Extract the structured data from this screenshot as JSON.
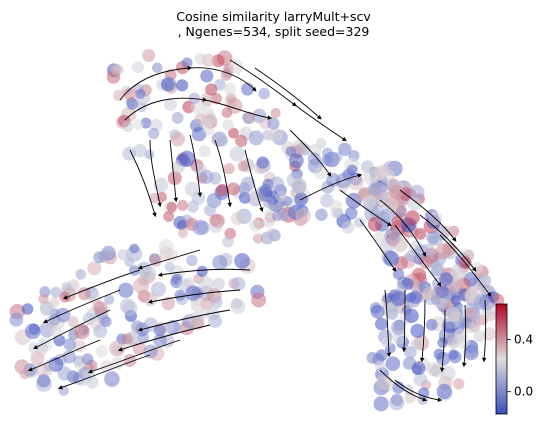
{
  "chart_data": {
    "type": "scatter",
    "title_line1": "Cosine similarity larryMult+scv",
    "title_line2": ", Ngenes=534, split seed=329",
    "xlabel": "",
    "ylabel": "",
    "axes_visible": false,
    "grid": false,
    "overlay": "velocity streamlines (black, with arrowheads)",
    "colormap": {
      "name": "coolwarm",
      "low": "#3b4cc0",
      "mid": "#dddddd",
      "high": "#b40426"
    },
    "colorbar": {
      "placement": "right-bottom",
      "range": [
        -0.17,
        0.67
      ],
      "ticks": [
        {
          "value": 0.4,
          "label": "0.4"
        },
        {
          "value": 0.0,
          "label": "0.0"
        }
      ]
    },
    "regions": [
      {
        "name": "top-left arm",
        "mean_value": 0.28
      },
      {
        "name": "central junction",
        "mean_value": 0.05
      },
      {
        "name": "right diagonal arm",
        "mean_value": 0.3
      },
      {
        "name": "bottom-left arm",
        "mean_value": 0.2
      },
      {
        "name": "bottom-right lobe",
        "mean_value": 0.12
      }
    ]
  }
}
